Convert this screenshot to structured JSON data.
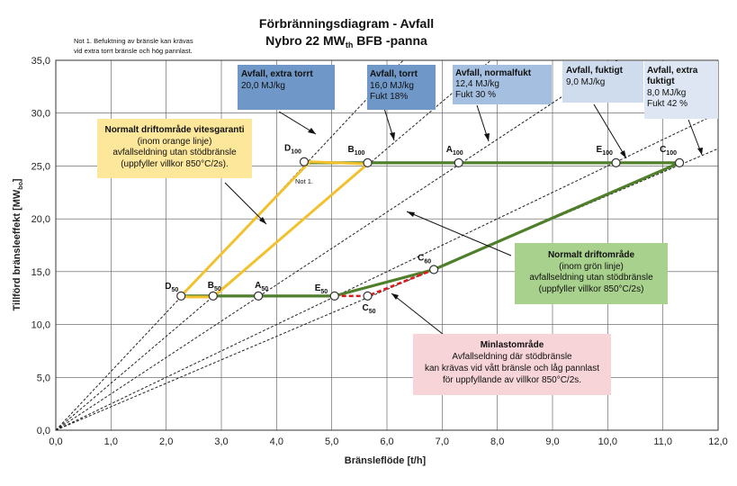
{
  "chart_data": {
    "type": "line",
    "title_line1": "Förbränningsdiagram - Avfall",
    "title_line2_pre": "Nybro 22 MW",
    "title_line2_sub": "th",
    "title_line2_post": " BFB -panna",
    "note_top": [
      "Not 1. Befuktning av bränsle kan krävas",
      "vid extra torrt bränsle och hög pannlast."
    ],
    "note_small": "Not 1.",
    "xlabel": "Bränsleflöde [t/h]",
    "ylabel_pre": "Tillförd bränsleeffekt  [MW",
    "ylabel_sub": "bo",
    "ylabel_post": "]",
    "xlim": [
      0,
      12
    ],
    "ylim": [
      0,
      35
    ],
    "x_ticks": [
      "0,0",
      "1,0",
      "2,0",
      "3,0",
      "4,0",
      "5,0",
      "6,0",
      "7,0",
      "8,0",
      "9,0",
      "10,0",
      "11,0",
      "12,0"
    ],
    "y_ticks": [
      "0,0",
      "5,0",
      "10,0",
      "15,0",
      "20,0",
      "25,0",
      "30,0",
      "35,0"
    ],
    "grid": true,
    "fuel_lines": [
      {
        "name": "Avfall, extra torrt",
        "slope": 5.56
      },
      {
        "name": "Avfall, torrt",
        "slope": 4.44
      },
      {
        "name": "Avfall, normalfukt",
        "slope": 3.44
      },
      {
        "name": "Avfall, fuktigt",
        "slope": 2.5
      },
      {
        "name": "Avfall, extra fuktigt",
        "slope": 2.22
      }
    ],
    "points": [
      {
        "label": "D",
        "sub": "100",
        "x": 4.5,
        "y": 25.4
      },
      {
        "label": "B",
        "sub": "100",
        "x": 5.65,
        "y": 25.3
      },
      {
        "label": "A",
        "sub": "100",
        "x": 7.3,
        "y": 25.3
      },
      {
        "label": "E",
        "sub": "100",
        "x": 10.15,
        "y": 25.3
      },
      {
        "label": "C",
        "sub": "100",
        "x": 11.3,
        "y": 25.3
      },
      {
        "label": "D",
        "sub": "50",
        "x": 2.27,
        "y": 12.7
      },
      {
        "label": "B",
        "sub": "50",
        "x": 2.85,
        "y": 12.7
      },
      {
        "label": "A",
        "sub": "50",
        "x": 3.67,
        "y": 12.7
      },
      {
        "label": "E",
        "sub": "50",
        "x": 5.05,
        "y": 12.7
      },
      {
        "label": "C",
        "sub": "50",
        "x": 5.65,
        "y": 12.7
      },
      {
        "label": "C",
        "sub": "60",
        "x": 6.85,
        "y": 15.2
      }
    ],
    "green_region": [
      [
        4.5,
        25.3
      ],
      [
        11.3,
        25.3
      ],
      [
        6.85,
        15.2
      ],
      [
        5.05,
        12.7
      ],
      [
        2.27,
        12.7
      ]
    ],
    "green_path": [
      [
        2.27,
        12.7
      ],
      [
        5.05,
        12.7
      ],
      [
        6.85,
        15.2
      ],
      [
        11.3,
        25.3
      ],
      [
        4.5,
        25.3
      ]
    ],
    "yellow_path": [
      [
        2.27,
        12.7
      ],
      [
        2.4,
        12.6
      ],
      [
        2.85,
        12.6
      ],
      [
        5.65,
        25.2
      ],
      [
        4.6,
        25.4
      ],
      [
        2.27,
        12.7
      ]
    ],
    "red_path": [
      [
        5.05,
        12.7
      ],
      [
        5.65,
        12.7
      ],
      [
        6.85,
        15.2
      ]
    ],
    "fuel_boxes": [
      {
        "title": "Avfall, extra torrt",
        "lines": [
          "20,0 MJ/kg"
        ],
        "color": "#6f97c7"
      },
      {
        "title": "Avfall, torrt",
        "lines": [
          "16,0 MJ/kg",
          "Fukt 18%"
        ],
        "color": "#6f97c7"
      },
      {
        "title": "Avfall, normalfukt",
        "lines": [
          "12,4 MJ/kg",
          "Fukt 30 %"
        ],
        "color": "#a4bfdf"
      },
      {
        "title": "Avfall, fuktigt",
        "lines": [
          "9,0 MJ/kg"
        ],
        "color": "#cfdcee"
      },
      {
        "title": "Avfall, extra",
        "lines": [
          "fuktigt",
          "8,0 MJ/kg",
          "Fukt 42 %"
        ],
        "color": "#dde6f2"
      }
    ],
    "annotation_yellow": {
      "title": "Normalt driftområde vitesgaranti",
      "lines": [
        "(inom orange linje)",
        "avfallseldning utan stödbränsle",
        "(uppfyller villkor 850°C/2s)."
      ],
      "color": "#fde79a"
    },
    "annotation_green": {
      "title": "Normalt driftområde",
      "lines": [
        "(inom grön linje)",
        "avfallseldning utan stödbränsle",
        "(uppfyller villkor 850°C/2s)"
      ],
      "color": "#a9d18e"
    },
    "annotation_red": {
      "title": "Minlastområde",
      "lines": [
        "Avfallseldning där stödbränsle",
        "kan krävas vid vått bränsle och låg pannlast",
        "för uppfyllande av villkor 850°C/2s."
      ],
      "color": "#f6d4d8"
    }
  }
}
